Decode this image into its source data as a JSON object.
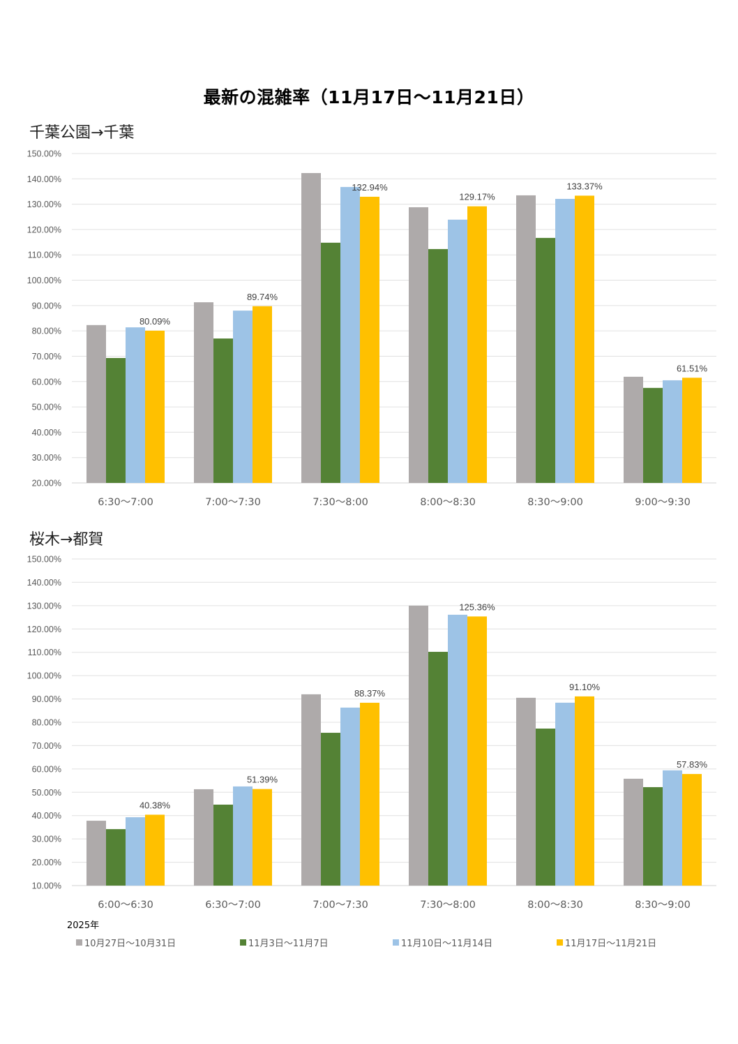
{
  "title": "最新の混雑率（11月17日～11月21日）",
  "year_label": "2025年",
  "legend": [
    {
      "label": "10月27日～10月31日",
      "color": "#AEAAAA"
    },
    {
      "label": "11月3日～11月7日",
      "color": "#548235"
    },
    {
      "label": "11月10日～11月14日",
      "color": "#9DC3E6"
    },
    {
      "label": "11月17日～11月21日",
      "color": "#FFC000"
    }
  ],
  "chart_data": [
    {
      "type": "bar",
      "title": "千葉公園→千葉",
      "categories": [
        "6:30～7:00",
        "7:00～7:30",
        "7:30～8:00",
        "8:00～8:30",
        "8:30～9:00",
        "9:00～9:30"
      ],
      "ylim": [
        20,
        150
      ],
      "ystep": 10,
      "grid": true,
      "series": [
        {
          "name": "10月27日～10月31日",
          "values": [
            82.3,
            91.3,
            142.3,
            128.8,
            133.5,
            61.9
          ]
        },
        {
          "name": "11月3日～11月7日",
          "values": [
            69.3,
            77.0,
            114.8,
            112.3,
            116.7,
            57.5
          ]
        },
        {
          "name": "11月10日～11月14日",
          "values": [
            81.4,
            88.0,
            136.8,
            123.9,
            132.1,
            60.5
          ]
        },
        {
          "name": "11月17日～11月21日",
          "values": [
            80.09,
            89.74,
            132.94,
            129.17,
            133.37,
            61.51
          ]
        }
      ],
      "data_labels": [
        "80.09%",
        "89.74%",
        "132.94%",
        "129.17%",
        "133.37%",
        "61.51%"
      ]
    },
    {
      "type": "bar",
      "title": "桜木→都賀",
      "categories": [
        "6:00～6:30",
        "6:30～7:00",
        "7:00～7:30",
        "7:30～8:00",
        "8:00～8:30",
        "8:30～9:00"
      ],
      "ylim": [
        10,
        150
      ],
      "ystep": 10,
      "grid": true,
      "series": [
        {
          "name": "10月27日～10月31日",
          "values": [
            37.8,
            51.3,
            92.0,
            130.0,
            90.5,
            55.8
          ]
        },
        {
          "name": "11月3日～11月7日",
          "values": [
            34.2,
            44.7,
            75.5,
            110.2,
            77.3,
            52.2
          ]
        },
        {
          "name": "11月10日～11月14日",
          "values": [
            39.3,
            52.5,
            86.3,
            126.1,
            88.4,
            59.4
          ]
        },
        {
          "name": "11月17日～11月21日",
          "values": [
            40.38,
            51.39,
            88.37,
            125.36,
            91.1,
            57.83
          ]
        }
      ],
      "data_labels": [
        "40.38%",
        "51.39%",
        "88.37%",
        "125.36%",
        "91.10%",
        "57.83%"
      ]
    }
  ]
}
